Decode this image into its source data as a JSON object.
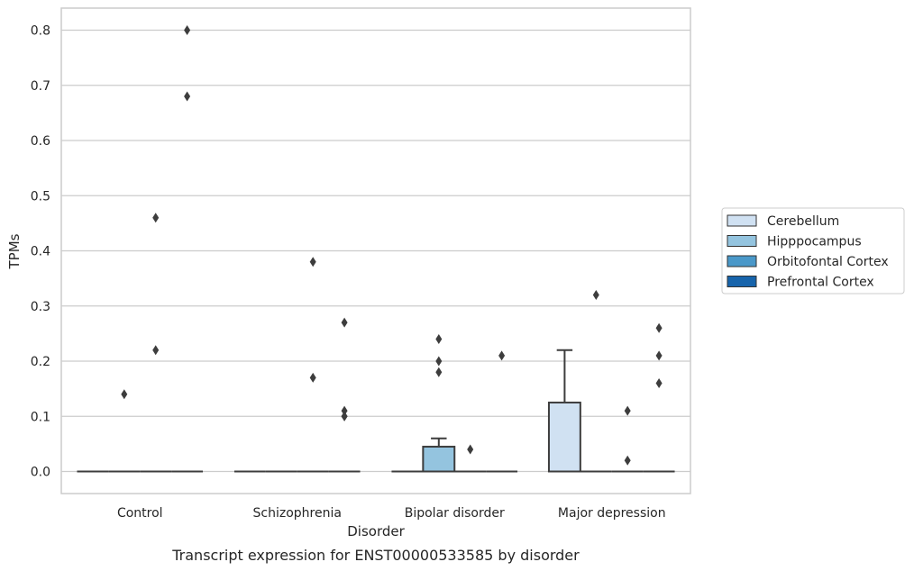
{
  "chart_data": {
    "type": "box",
    "caption": "Transcript expression for ENST00000533585 by disorder",
    "xlabel": "Disorder",
    "ylabel": "TPMs",
    "ylim": [
      -0.04,
      0.84
    ],
    "yticks": [
      0.0,
      0.1,
      0.2,
      0.3,
      0.4,
      0.5,
      0.6,
      0.7,
      0.8
    ],
    "ytick_labels": [
      "0.0",
      "0.1",
      "0.2",
      "0.3",
      "0.4",
      "0.5",
      "0.6",
      "0.7",
      "0.8"
    ],
    "grid": "horizontal",
    "legend_position": "right",
    "categories": [
      "Control",
      "Schizophrenia",
      "Bipolar disorder",
      "Major depression"
    ],
    "series": [
      {
        "name": "Cerebellum",
        "color": "#d0e1f2",
        "boxes": [
          {
            "q1": 0,
            "median": 0,
            "q3": 0,
            "whisker_low": 0,
            "whisker_high": 0,
            "outliers": []
          },
          {
            "q1": 0,
            "median": 0,
            "q3": 0,
            "whisker_low": 0,
            "whisker_high": 0,
            "outliers": []
          },
          {
            "q1": 0,
            "median": 0,
            "q3": 0,
            "whisker_low": 0,
            "whisker_high": 0,
            "outliers": []
          },
          {
            "q1": 0,
            "median": 0,
            "q3": 0.125,
            "whisker_low": 0,
            "whisker_high": 0.22,
            "outliers": []
          }
        ]
      },
      {
        "name": "Hipppocampus",
        "color": "#94c4df",
        "boxes": [
          {
            "q1": 0,
            "median": 0,
            "q3": 0,
            "whisker_low": 0,
            "whisker_high": 0,
            "outliers": [
              0.14
            ]
          },
          {
            "q1": 0,
            "median": 0,
            "q3": 0,
            "whisker_low": 0,
            "whisker_high": 0,
            "outliers": []
          },
          {
            "q1": 0,
            "median": 0,
            "q3": 0.045,
            "whisker_low": 0,
            "whisker_high": 0.06,
            "outliers": [
              0.24,
              0.2,
              0.18
            ]
          },
          {
            "q1": 0,
            "median": 0,
            "q3": 0,
            "whisker_low": 0,
            "whisker_high": 0,
            "outliers": [
              0.32
            ]
          }
        ]
      },
      {
        "name": "Orbitofontal Cortex",
        "color": "#4a98c9",
        "boxes": [
          {
            "q1": 0,
            "median": 0,
            "q3": 0,
            "whisker_low": 0,
            "whisker_high": 0,
            "outliers": [
              0.46,
              0.22
            ]
          },
          {
            "q1": 0,
            "median": 0,
            "q3": 0,
            "whisker_low": 0,
            "whisker_high": 0,
            "outliers": [
              0.38,
              0.17
            ]
          },
          {
            "q1": 0,
            "median": 0,
            "q3": 0,
            "whisker_low": 0,
            "whisker_high": 0,
            "outliers": [
              0.04
            ]
          },
          {
            "q1": 0,
            "median": 0,
            "q3": 0,
            "whisker_low": 0,
            "whisker_high": 0,
            "outliers": [
              0.11,
              0.02
            ]
          }
        ]
      },
      {
        "name": "Prefrontal Cortex",
        "color": "#1764ab",
        "boxes": [
          {
            "q1": 0,
            "median": 0,
            "q3": 0,
            "whisker_low": 0,
            "whisker_high": 0,
            "outliers": [
              0.8,
              0.68
            ]
          },
          {
            "q1": 0,
            "median": 0,
            "q3": 0,
            "whisker_low": 0,
            "whisker_high": 0,
            "outliers": [
              0.11,
              0.1,
              0.27,
              0.1
            ]
          },
          {
            "q1": 0,
            "median": 0,
            "q3": 0,
            "whisker_low": 0,
            "whisker_high": 0,
            "outliers": [
              0.21
            ]
          },
          {
            "q1": 0,
            "median": 0,
            "q3": 0,
            "whisker_low": 0,
            "whisker_high": 0,
            "outliers": [
              0.26,
              0.21,
              0.16
            ]
          }
        ]
      }
    ]
  }
}
